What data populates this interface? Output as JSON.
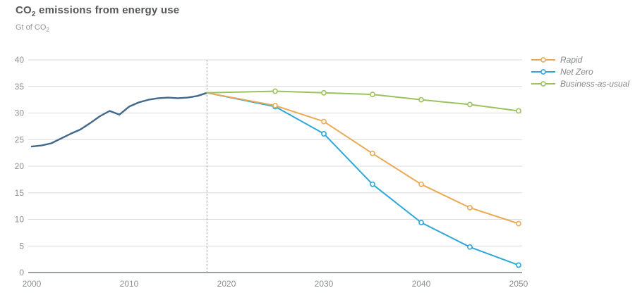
{
  "header": {
    "title_prefix": "CO",
    "title_sub": "2",
    "title_rest": " emissions from energy use",
    "subtitle_prefix": "Gt of CO",
    "subtitle_sub": "2"
  },
  "colors": {
    "title": "#54565a",
    "subtitle": "#919396",
    "tick_label": "#8e9093",
    "grid": "#dadcdd",
    "axis": "#9b9ea1",
    "divider": "#aeb0b2",
    "legend_text": "#85878a",
    "history": "#40688b",
    "rapid": "#eaa952",
    "net_zero": "#2ea7d9",
    "business_as_usual": "#9cc25e"
  },
  "chart_data": {
    "type": "line",
    "title": "CO2 emissions from energy use",
    "ylabel": "Gt of CO2",
    "xlabel": "",
    "ylim": [
      0,
      40
    ],
    "xlim": [
      2000,
      2050
    ],
    "yticks": [
      0,
      5,
      10,
      15,
      20,
      25,
      30,
      35,
      40
    ],
    "xticks": [
      2000,
      2010,
      2020,
      2030,
      2040,
      2050
    ],
    "grid": "horizontal",
    "legend_position": "top-right",
    "divider_year": 2018,
    "series": [
      {
        "name": "History",
        "color": "#40688b",
        "width": 2.4,
        "marker_x": [],
        "x": [
          2000,
          2001,
          2002,
          2003,
          2004,
          2005,
          2006,
          2007,
          2008,
          2009,
          2010,
          2011,
          2012,
          2013,
          2014,
          2015,
          2016,
          2017,
          2018
        ],
        "y": [
          23.7,
          23.9,
          24.3,
          25.2,
          26.1,
          26.9,
          28.1,
          29.4,
          30.4,
          29.7,
          31.2,
          32.0,
          32.5,
          32.8,
          32.9,
          32.8,
          32.9,
          33.2,
          33.8
        ]
      },
      {
        "name": "Net Zero",
        "color": "#2ea7d9",
        "width": 2,
        "marker_x": [
          2025,
          2030,
          2035,
          2040,
          2045,
          2050
        ],
        "x": [
          2018,
          2025,
          2030,
          2035,
          2040,
          2045,
          2050
        ],
        "y": [
          33.8,
          31.2,
          26.1,
          16.6,
          9.4,
          4.8,
          1.4
        ]
      },
      {
        "name": "Rapid",
        "color": "#eaa952",
        "width": 2,
        "marker_x": [
          2025,
          2030,
          2035,
          2040,
          2045,
          2050
        ],
        "x": [
          2018,
          2025,
          2030,
          2035,
          2040,
          2045,
          2050
        ],
        "y": [
          33.8,
          31.4,
          28.4,
          22.4,
          16.6,
          12.2,
          9.2
        ]
      },
      {
        "name": "Business-as-usual",
        "color": "#9cc25e",
        "width": 2,
        "marker_x": [
          2025,
          2030,
          2035,
          2040,
          2045,
          2050
        ],
        "x": [
          2018,
          2025,
          2030,
          2035,
          2040,
          2045,
          2050
        ],
        "y": [
          33.8,
          34.1,
          33.8,
          33.5,
          32.5,
          31.6,
          30.4
        ]
      }
    ],
    "legend": [
      {
        "label": "Rapid",
        "color": "#eaa952"
      },
      {
        "label": "Net Zero",
        "color": "#2ea7d9"
      },
      {
        "label": "Business-as-usual",
        "color": "#9cc25e"
      }
    ]
  }
}
